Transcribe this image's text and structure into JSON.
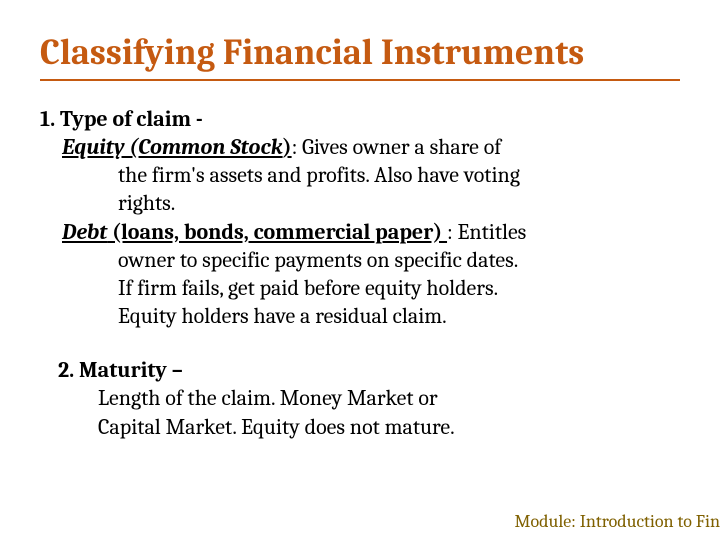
{
  "title": {
    "text": "Classifying Financial Instruments",
    "color": "#c55a11",
    "underline_color": "#c55a11"
  },
  "typography": {
    "title_fontsize": 36,
    "body_fontsize": 22,
    "font_family": "Cambria, Georgia, serif"
  },
  "section1": {
    "number_label": "1. Type of claim  -",
    "equity": {
      "lead": "Equity (Common Stock",
      "lead_trail": ")",
      "colon_text": ": Gives owner a share of",
      "cont1": "the firm's assets and profits. Also have voting",
      "cont2": "rights."
    },
    "debt": {
      "lead": "Debt",
      "lead_paren": " (loans, bonds, commercial paper) ",
      "colon_text": " : Entitles",
      "cont1": "owner to specific payments on specific dates.",
      "cont2": "If firm fails, get paid before equity holders.",
      "cont3": "Equity holders have a residual claim."
    }
  },
  "section2": {
    "number_label": "2. Maturity –",
    "cont1": "Length of the claim. Money Market or",
    "cont2": "Capital Market. Equity does not mature."
  },
  "footer": {
    "text": "Module: Introduction to Fin",
    "color": "#7f6000"
  },
  "colors": {
    "background": "#ffffff",
    "text": "#000000"
  }
}
